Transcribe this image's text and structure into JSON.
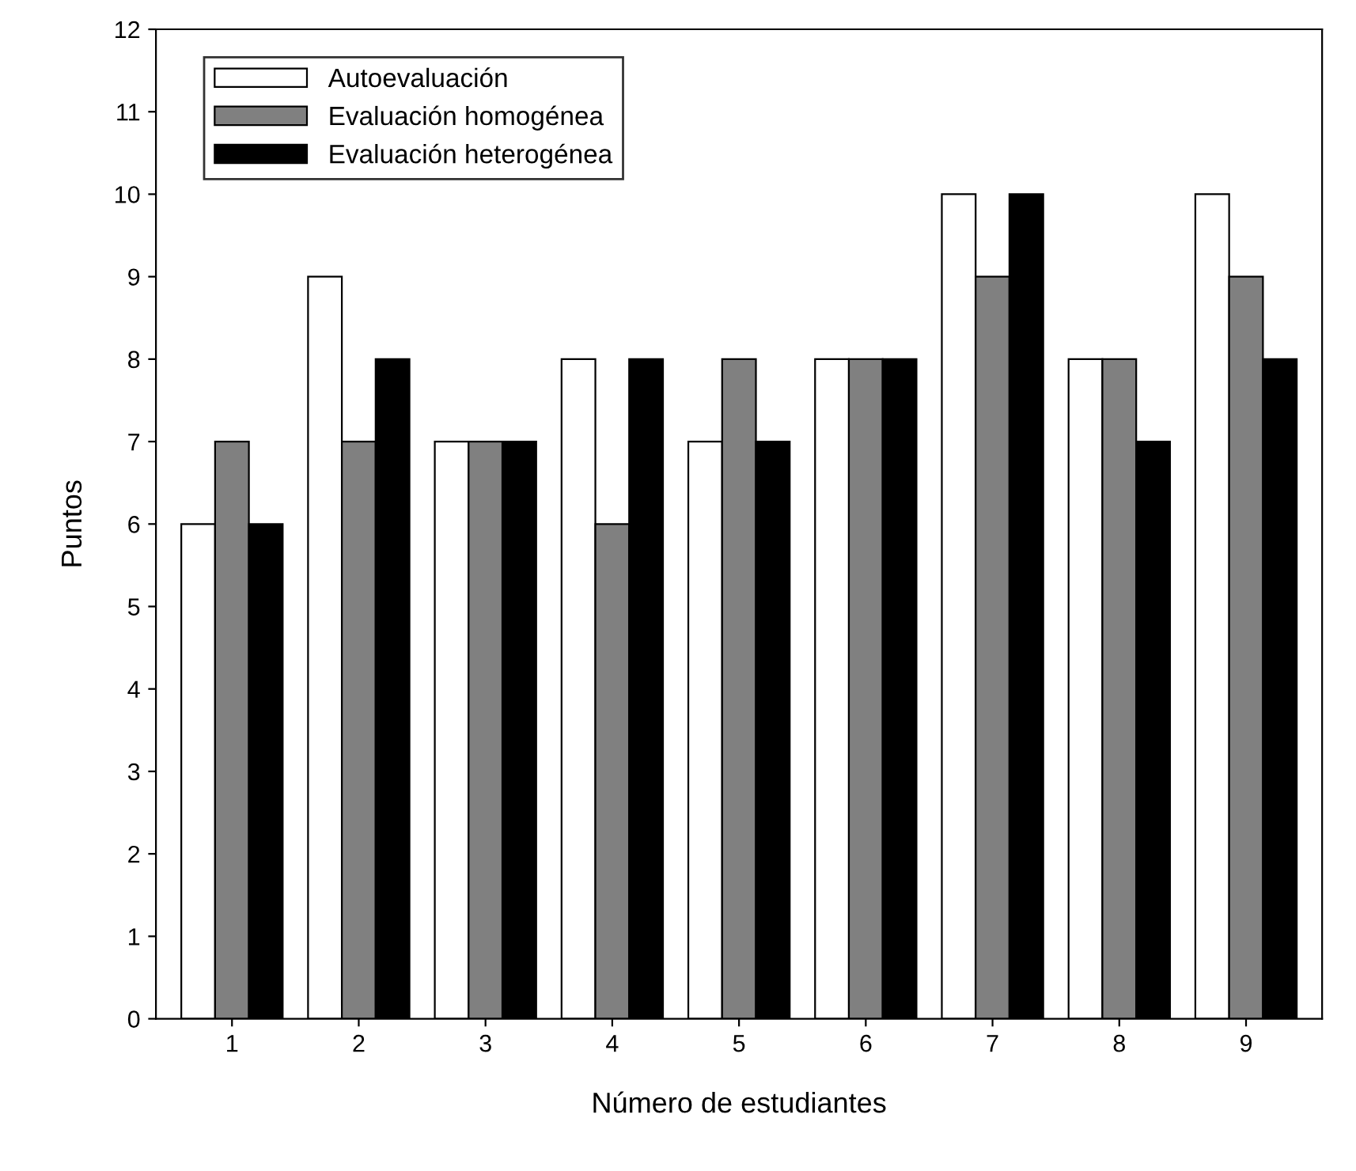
{
  "chart_data": {
    "type": "bar",
    "xlabel": "Número de estudiantes",
    "ylabel": "Puntos",
    "categories": [
      "1",
      "2",
      "3",
      "4",
      "5",
      "6",
      "7",
      "8",
      "9"
    ],
    "series": [
      {
        "name": "Autoevaluación",
        "color": "#ffffff",
        "values": [
          6,
          9,
          7,
          8,
          7,
          8,
          10,
          8,
          10
        ]
      },
      {
        "name": "Evaluación homogénea",
        "color": "#808080",
        "values": [
          7,
          7,
          7,
          6,
          8,
          8,
          9,
          8,
          9
        ]
      },
      {
        "name": "Evaluación heterogénea",
        "color": "#000000",
        "values": [
          6,
          8,
          7,
          8,
          7,
          8,
          10,
          7,
          8
        ]
      }
    ],
    "ylim": [
      0,
      12
    ],
    "yticks": [
      0,
      1,
      2,
      3,
      4,
      5,
      6,
      7,
      8,
      9,
      10,
      11,
      12
    ],
    "grid": false,
    "legend": "top left"
  }
}
